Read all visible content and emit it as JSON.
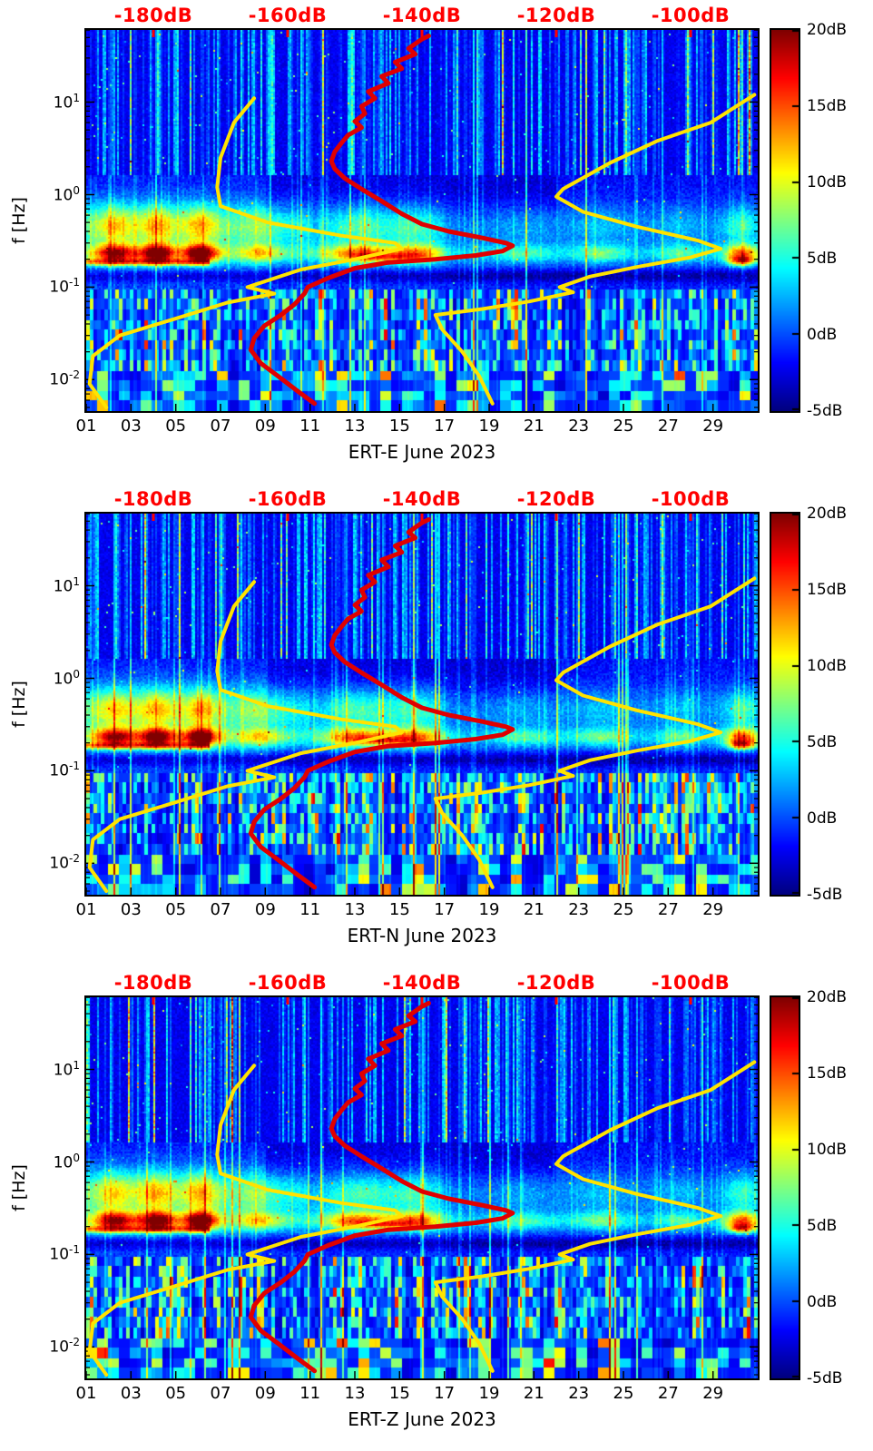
{
  "chart_data": {
    "type": "heatmap",
    "colormap": "jet",
    "panels": [
      {
        "label": "ERT-E",
        "xlabel": "ERT-E June 2023",
        "seed": 11
      },
      {
        "label": "ERT-N",
        "xlabel": "ERT-N June 2023",
        "seed": 23
      },
      {
        "label": "ERT-Z",
        "xlabel": "ERT-Z June 2023",
        "seed": 37
      }
    ],
    "x_axis": {
      "day_min": 1,
      "day_max": 31,
      "tick_labels": [
        "01",
        "03",
        "05",
        "07",
        "09",
        "11",
        "13",
        "15",
        "17",
        "19",
        "21",
        "23",
        "25",
        "27",
        "29"
      ]
    },
    "y_axis": {
      "label": "f [Hz]",
      "base": "10",
      "log_min": -2.34,
      "log_max": 1.78,
      "ticks": [
        {
          "exp": "1"
        },
        {
          "exp": "0"
        },
        {
          "exp": "-1"
        },
        {
          "exp": "-2"
        }
      ]
    },
    "top_axis": {
      "unit": "dB",
      "color": "#ff0000",
      "min": -190,
      "max": -90,
      "ticks": [
        {
          "db": -180,
          "label": "-180dB"
        },
        {
          "db": -160,
          "label": "-160dB"
        },
        {
          "db": -140,
          "label": "-140dB"
        },
        {
          "db": -120,
          "label": "-120dB"
        },
        {
          "db": -100,
          "label": "-100dB"
        }
      ]
    },
    "colorbar": {
      "min": -5,
      "max": 20,
      "ticks": [
        {
          "v": 20,
          "label": "20dB"
        },
        {
          "v": 15,
          "label": "15dB"
        },
        {
          "v": 10,
          "label": "10dB"
        },
        {
          "v": 5,
          "label": "5dB"
        },
        {
          "v": 0,
          "label": "0dB"
        },
        {
          "v": -5,
          "label": "-5dB"
        }
      ]
    },
    "spectrogram": {
      "value_range_db": [
        -5,
        20
      ],
      "base_band_level": 2.5,
      "microseism_center_hz": 0.23,
      "microseism_events": [
        [
          2.3,
          15,
          1.0
        ],
        [
          4.2,
          17,
          0.8
        ],
        [
          6.1,
          18,
          0.8
        ],
        [
          8.8,
          7,
          1.2
        ],
        [
          13.2,
          11,
          1.6
        ],
        [
          15.8,
          10,
          1.2
        ],
        [
          20.5,
          4,
          1.5
        ],
        [
          24.0,
          5,
          1.2
        ],
        [
          27.5,
          4,
          1.0
        ],
        [
          30.3,
          12,
          0.8
        ]
      ]
    },
    "curves": [
      {
        "id": "low-noise-model",
        "color": "#ffe300",
        "units": [
          "dB",
          "Hz"
        ],
        "points": [
          [
            -165,
            11
          ],
          [
            -168,
            6
          ],
          [
            -170,
            2.5
          ],
          [
            -170.5,
            1.2
          ],
          [
            -170,
            0.75
          ],
          [
            -163,
            0.5
          ],
          [
            -152,
            0.36
          ],
          [
            -144,
            0.3
          ],
          [
            -143,
            0.26
          ],
          [
            -150,
            0.2
          ],
          [
            -158,
            0.155
          ],
          [
            -166,
            0.1
          ],
          [
            -162,
            0.085
          ],
          [
            -169,
            0.068
          ],
          [
            -177,
            0.045
          ],
          [
            -185,
            0.03
          ],
          [
            -189,
            0.018
          ],
          [
            -189.5,
            0.009
          ],
          [
            -187,
            0.005
          ]
        ]
      },
      {
        "id": "high-noise-model",
        "color": "#ffe300",
        "units": [
          "dB",
          "Hz"
        ],
        "points": [
          [
            -90.5,
            12
          ],
          [
            -97,
            6
          ],
          [
            -105,
            3.8
          ],
          [
            -112,
            2.2
          ],
          [
            -119,
            1.15
          ],
          [
            -120,
            0.95
          ],
          [
            -116,
            0.65
          ],
          [
            -108,
            0.45
          ],
          [
            -99,
            0.32
          ],
          [
            -95.5,
            0.26
          ],
          [
            -100,
            0.21
          ],
          [
            -108,
            0.165
          ],
          [
            -115,
            0.13
          ],
          [
            -119.5,
            0.1
          ],
          [
            -117.5,
            0.088
          ],
          [
            -124,
            0.07
          ],
          [
            -131,
            0.058
          ],
          [
            -138,
            0.05
          ],
          [
            -137,
            0.035
          ],
          [
            -134,
            0.02
          ],
          [
            -131.5,
            0.011
          ],
          [
            -129.5,
            0.0055
          ]
        ]
      },
      {
        "id": "median-psd",
        "color": "#e00000",
        "units": [
          "dB",
          "Hz"
        ],
        "points": [
          [
            -139,
            52
          ],
          [
            -140,
            48
          ],
          [
            -142,
            38
          ],
          [
            -141,
            33
          ],
          [
            -144,
            27
          ],
          [
            -143,
            23
          ],
          [
            -146,
            19
          ],
          [
            -145,
            16
          ],
          [
            -148,
            13
          ],
          [
            -147,
            11
          ],
          [
            -149,
            9
          ],
          [
            -148.5,
            7.5
          ],
          [
            -150,
            6.2
          ],
          [
            -149,
            5.3
          ],
          [
            -151,
            4.4
          ],
          [
            -152,
            3.6
          ],
          [
            -153,
            2.9
          ],
          [
            -153.5,
            2.3
          ],
          [
            -153,
            1.9
          ],
          [
            -151.5,
            1.5
          ],
          [
            -149,
            1.15
          ],
          [
            -146,
            0.85
          ],
          [
            -143,
            0.62
          ],
          [
            -140,
            0.48
          ],
          [
            -136,
            0.4
          ],
          [
            -131,
            0.34
          ],
          [
            -127.5,
            0.3
          ],
          [
            -126.5,
            0.28
          ],
          [
            -128,
            0.245
          ],
          [
            -132,
            0.22
          ],
          [
            -138,
            0.2
          ],
          [
            -145,
            0.185
          ],
          [
            -150,
            0.16
          ],
          [
            -154,
            0.125
          ],
          [
            -157,
            0.1
          ],
          [
            -157.5,
            0.085
          ],
          [
            -159,
            0.065
          ],
          [
            -161,
            0.05
          ],
          [
            -163.5,
            0.038
          ],
          [
            -165,
            0.028
          ],
          [
            -165.5,
            0.021
          ],
          [
            -164,
            0.015
          ],
          [
            -161.5,
            0.011
          ],
          [
            -158.5,
            0.0075
          ],
          [
            -156,
            0.0055
          ]
        ]
      }
    ]
  }
}
